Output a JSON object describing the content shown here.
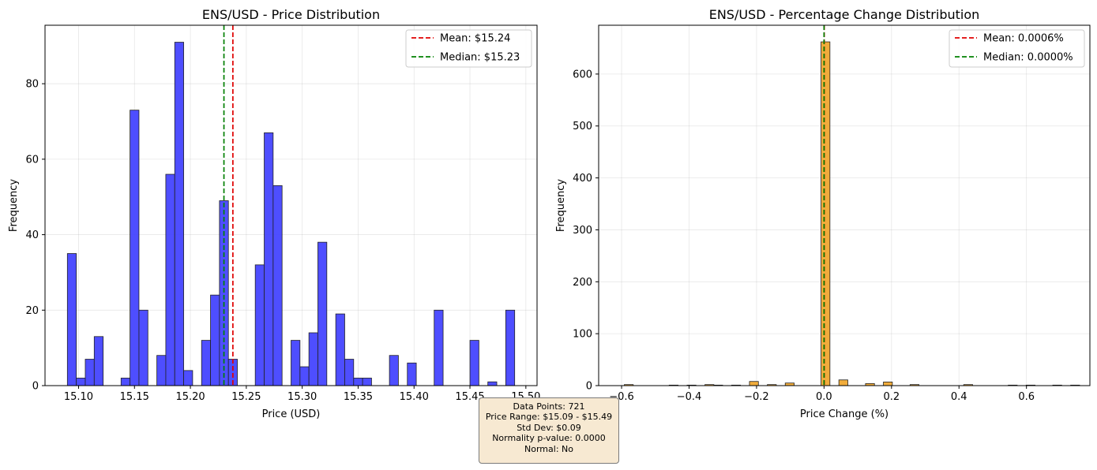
{
  "chart_data": [
    {
      "type": "bar",
      "title": "ENS/USD - Price Distribution",
      "xlabel": "Price (USD)",
      "ylabel": "Frequency",
      "xlim": [
        15.07,
        15.51
      ],
      "ylim": [
        0,
        95.5
      ],
      "xticks": [
        15.1,
        15.15,
        15.2,
        15.25,
        15.3,
        15.35,
        15.4,
        15.45,
        15.5
      ],
      "xtick_labels": [
        "15.10",
        "15.15",
        "15.20",
        "15.25",
        "15.30",
        "15.35",
        "15.40",
        "15.45",
        "15.50"
      ],
      "yticks": [
        0,
        20,
        40,
        60,
        80
      ],
      "yticks_labels": [
        "0",
        "20",
        "40",
        "60",
        "80"
      ],
      "bin_width": 0.008,
      "bins": [
        {
          "x": 15.09,
          "count": 35
        },
        {
          "x": 15.098,
          "count": 2
        },
        {
          "x": 15.106,
          "count": 7
        },
        {
          "x": 15.114,
          "count": 13
        },
        {
          "x": 15.138,
          "count": 2
        },
        {
          "x": 15.146,
          "count": 73
        },
        {
          "x": 15.154,
          "count": 20
        },
        {
          "x": 15.17,
          "count": 8
        },
        {
          "x": 15.178,
          "count": 56
        },
        {
          "x": 15.186,
          "count": 91
        },
        {
          "x": 15.194,
          "count": 4
        },
        {
          "x": 15.21,
          "count": 12
        },
        {
          "x": 15.218,
          "count": 24
        },
        {
          "x": 15.226,
          "count": 49
        },
        {
          "x": 15.234,
          "count": 7
        },
        {
          "x": 15.258,
          "count": 32
        },
        {
          "x": 15.266,
          "count": 67
        },
        {
          "x": 15.274,
          "count": 53
        },
        {
          "x": 15.29,
          "count": 12
        },
        {
          "x": 15.298,
          "count": 5
        },
        {
          "x": 15.306,
          "count": 14
        },
        {
          "x": 15.314,
          "count": 38
        },
        {
          "x": 15.33,
          "count": 19
        },
        {
          "x": 15.338,
          "count": 7
        },
        {
          "x": 15.346,
          "count": 2
        },
        {
          "x": 15.354,
          "count": 2
        },
        {
          "x": 15.378,
          "count": 8
        },
        {
          "x": 15.394,
          "count": 6
        },
        {
          "x": 15.418,
          "count": 20
        },
        {
          "x": 15.45,
          "count": 12
        },
        {
          "x": 15.466,
          "count": 1
        },
        {
          "x": 15.482,
          "count": 20
        }
      ],
      "bar_color": "#4444ff",
      "vlines": [
        {
          "x": 15.238,
          "color": "#e00000"
        },
        {
          "x": 15.23,
          "color": "#008000"
        }
      ],
      "legend": [
        "Mean: $15.24",
        "Median: $15.23"
      ],
      "legend_position": "upper right",
      "grid": true
    },
    {
      "type": "bar",
      "title": "ENS/USD - Percentage Change Distribution",
      "xlabel": "Price Change (%)",
      "ylabel": "Frequency",
      "xlim": [
        -0.668,
        0.788
      ],
      "ylim": [
        0,
        694
      ],
      "xticks": [
        -0.6,
        -0.4,
        -0.2,
        0.0,
        0.2,
        0.4,
        0.6
      ],
      "xtick_labels": [
        "−0.6",
        "−0.4",
        "−0.2",
        "0.0",
        "0.2",
        "0.4",
        "0.6"
      ],
      "yticks": [
        0,
        100,
        200,
        300,
        400,
        500,
        600
      ],
      "yticks_labels": [
        "0",
        "100",
        "200",
        "300",
        "400",
        "500",
        "600"
      ],
      "bin_width": 0.0265,
      "bins": [
        {
          "x": -0.592,
          "count": 2
        },
        {
          "x": -0.459,
          "count": 1
        },
        {
          "x": -0.406,
          "count": 1
        },
        {
          "x": -0.353,
          "count": 2
        },
        {
          "x": -0.327,
          "count": 1
        },
        {
          "x": -0.274,
          "count": 1
        },
        {
          "x": -0.221,
          "count": 8
        },
        {
          "x": -0.168,
          "count": 2
        },
        {
          "x": -0.115,
          "count": 5
        },
        {
          "x": -0.009,
          "count": 662
        },
        {
          "x": 0.044,
          "count": 11
        },
        {
          "x": 0.123,
          "count": 4
        },
        {
          "x": 0.176,
          "count": 7
        },
        {
          "x": 0.255,
          "count": 2
        },
        {
          "x": 0.414,
          "count": 2
        },
        {
          "x": 0.546,
          "count": 1
        },
        {
          "x": 0.599,
          "count": 1
        },
        {
          "x": 0.678,
          "count": 1
        },
        {
          "x": 0.731,
          "count": 1
        }
      ],
      "bar_color": "#f0a830",
      "vlines": [
        {
          "x": 0.0006,
          "color": "#e00000"
        },
        {
          "x": 0.0,
          "color": "#008000"
        }
      ],
      "legend": [
        "Mean: 0.0006%",
        "Median: 0.0000%"
      ],
      "legend_position": "upper right",
      "grid": true
    }
  ],
  "stats_box": {
    "lines": [
      "Data Points: 721",
      "Price Range: $15.09 - $15.49",
      "Std Dev: $0.09",
      "Normality p-value: 0.0000",
      "Normal: No"
    ]
  }
}
